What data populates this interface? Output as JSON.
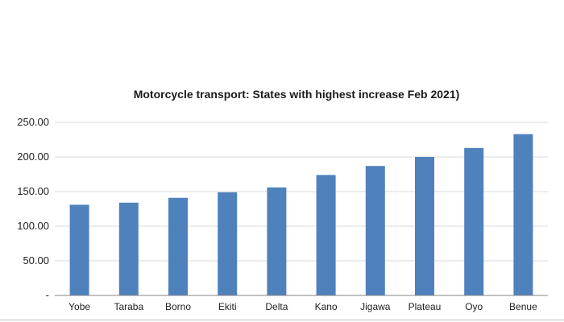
{
  "chart_data": {
    "type": "bar",
    "title": "Motorcycle transport: States with highest increase Feb 2021)",
    "xlabel": "",
    "ylabel": "",
    "categories": [
      "Yobe",
      "Taraba",
      "Borno",
      "Ekiti",
      "Delta",
      "Kano",
      "Jigawa",
      "Plateau",
      "Oyo",
      "Benue"
    ],
    "values": [
      131,
      134,
      141,
      149,
      156,
      174,
      187,
      200,
      213,
      233
    ],
    "ylim": [
      0,
      250
    ],
    "y_ticks": [
      0,
      50,
      100,
      150,
      200,
      250
    ],
    "y_tick_labels": [
      "-",
      "50.00",
      "100.00",
      "150.00",
      "200.00",
      "250.00"
    ],
    "grid": true,
    "legend": "none",
    "bar_color": "#4f81bd"
  }
}
